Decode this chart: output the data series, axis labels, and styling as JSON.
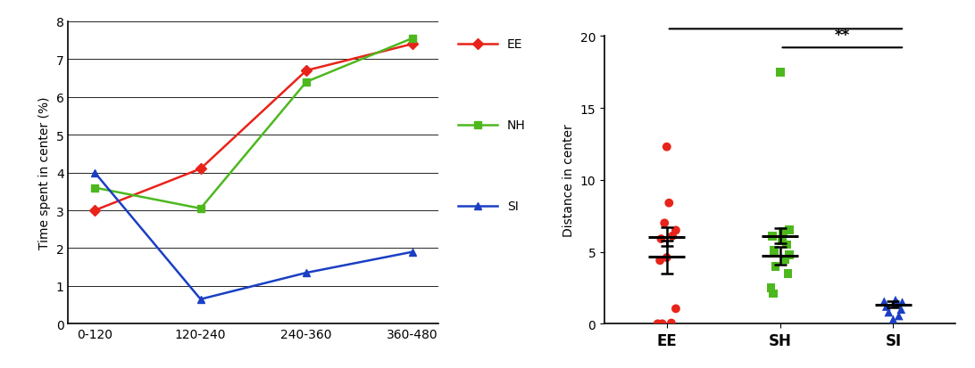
{
  "line_x": [
    "0-120",
    "120-240",
    "240-360",
    "360-480"
  ],
  "EE_line": [
    3.0,
    4.1,
    6.7,
    7.4
  ],
  "NH_line": [
    3.6,
    3.05,
    6.4,
    7.55
  ],
  "SI_line": [
    4.0,
    0.65,
    1.35,
    1.9
  ],
  "line_ylim": [
    0,
    8
  ],
  "line_ylabel": "Time spent in center (%)",
  "line_yticks": [
    0,
    1,
    2,
    3,
    4,
    5,
    6,
    7,
    8
  ],
  "EE_color": "#e8231a",
  "NH_color": "#4db81e",
  "SI_color": "#1a3fc4",
  "EE_scatter": [
    0.0,
    0.0,
    0.05,
    1.05,
    4.4,
    4.6,
    5.9,
    6.1,
    6.5,
    7.0,
    8.4,
    12.3
  ],
  "SH_scatter": [
    2.1,
    2.5,
    3.5,
    4.0,
    4.5,
    4.8,
    5.1,
    5.5,
    5.8,
    6.1,
    6.4,
    6.5,
    17.5
  ],
  "SI_scatter": [
    -0.2,
    0.3,
    0.55,
    0.8,
    1.0,
    1.2,
    1.4,
    1.5,
    1.55,
    1.65
  ],
  "EE_mean": 4.65,
  "EE_sem": 1.15,
  "EE_upper": 6.05,
  "EE_upper_sem": 0.65,
  "SH_mean": 4.75,
  "SH_sem": 0.62,
  "SH_upper": 6.1,
  "SH_upper_sem": 0.52,
  "SI_mean": 1.35,
  "SI_sem": 0.19,
  "scatter_ylim": [
    0,
    20
  ],
  "scatter_ylabel": "Distance in center",
  "scatter_yticks": [
    0,
    5,
    10,
    15,
    20
  ],
  "scatter_xlabel": [
    "EE",
    "SH",
    "SI"
  ],
  "background_color": "#ffffff",
  "fig_width": 10.92,
  "fig_height": 4.14,
  "fig_dpi": 100
}
